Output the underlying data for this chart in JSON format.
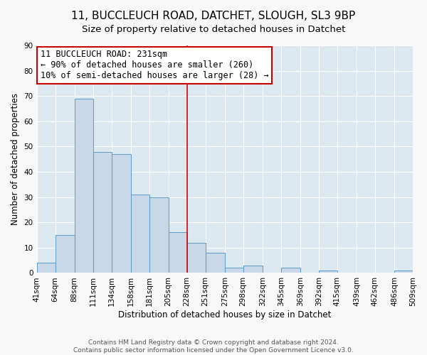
{
  "title": "11, BUCCLEUCH ROAD, DATCHET, SLOUGH, SL3 9BP",
  "subtitle": "Size of property relative to detached houses in Datchet",
  "xlabel": "Distribution of detached houses by size in Datchet",
  "ylabel": "Number of detached properties",
  "bin_edges": [
    41,
    64,
    88,
    111,
    134,
    158,
    181,
    205,
    228,
    251,
    275,
    298,
    322,
    345,
    369,
    392,
    415,
    439,
    462,
    486,
    509
  ],
  "bar_heights": [
    4,
    15,
    69,
    48,
    47,
    31,
    30,
    16,
    12,
    8,
    2,
    3,
    0,
    2,
    0,
    1,
    0,
    0,
    0,
    1
  ],
  "bar_color": "#c8d8e8",
  "bar_edge_color": "#5a9ac8",
  "vline_x": 228,
  "vline_color": "#cc0000",
  "annotation_line1": "11 BUCCLEUCH ROAD: 231sqm",
  "annotation_line2": "← 90% of detached houses are smaller (260)",
  "annotation_line3": "10% of semi-detached houses are larger (28) →",
  "annotation_box_color": "#ffffff",
  "annotation_border_color": "#cc0000",
  "ylim": [
    0,
    90
  ],
  "xlim": [
    41,
    509
  ],
  "yticks": [
    0,
    10,
    20,
    30,
    40,
    50,
    60,
    70,
    80,
    90
  ],
  "xtick_labels": [
    "41sqm",
    "64sqm",
    "88sqm",
    "111sqm",
    "134sqm",
    "158sqm",
    "181sqm",
    "205sqm",
    "228sqm",
    "251sqm",
    "275sqm",
    "298sqm",
    "322sqm",
    "345sqm",
    "369sqm",
    "392sqm",
    "415sqm",
    "439sqm",
    "462sqm",
    "486sqm",
    "509sqm"
  ],
  "footer_line1": "Contains HM Land Registry data © Crown copyright and database right 2024.",
  "footer_line2": "Contains public sector information licensed under the Open Government Licence v3.0.",
  "plot_bg_color": "#dce8f0",
  "fig_bg_color": "#f8f8f8",
  "grid_color": "#ffffff",
  "title_fontsize": 11,
  "subtitle_fontsize": 9.5,
  "axis_label_fontsize": 8.5,
  "tick_fontsize": 7.5,
  "annotation_fontsize": 8.5,
  "footer_fontsize": 6.5
}
